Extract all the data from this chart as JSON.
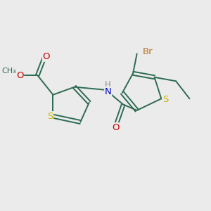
{
  "background_color": "#ebebeb",
  "bond_color": "#2d6b52",
  "atom_colors": {
    "S": "#c8b400",
    "O": "#cc0000",
    "N": "#0000cc",
    "Br": "#b87020",
    "C": "#2d6b52",
    "H": "#888888"
  },
  "figsize": [
    3.0,
    3.0
  ],
  "dpi": 100,
  "lw": 1.4
}
